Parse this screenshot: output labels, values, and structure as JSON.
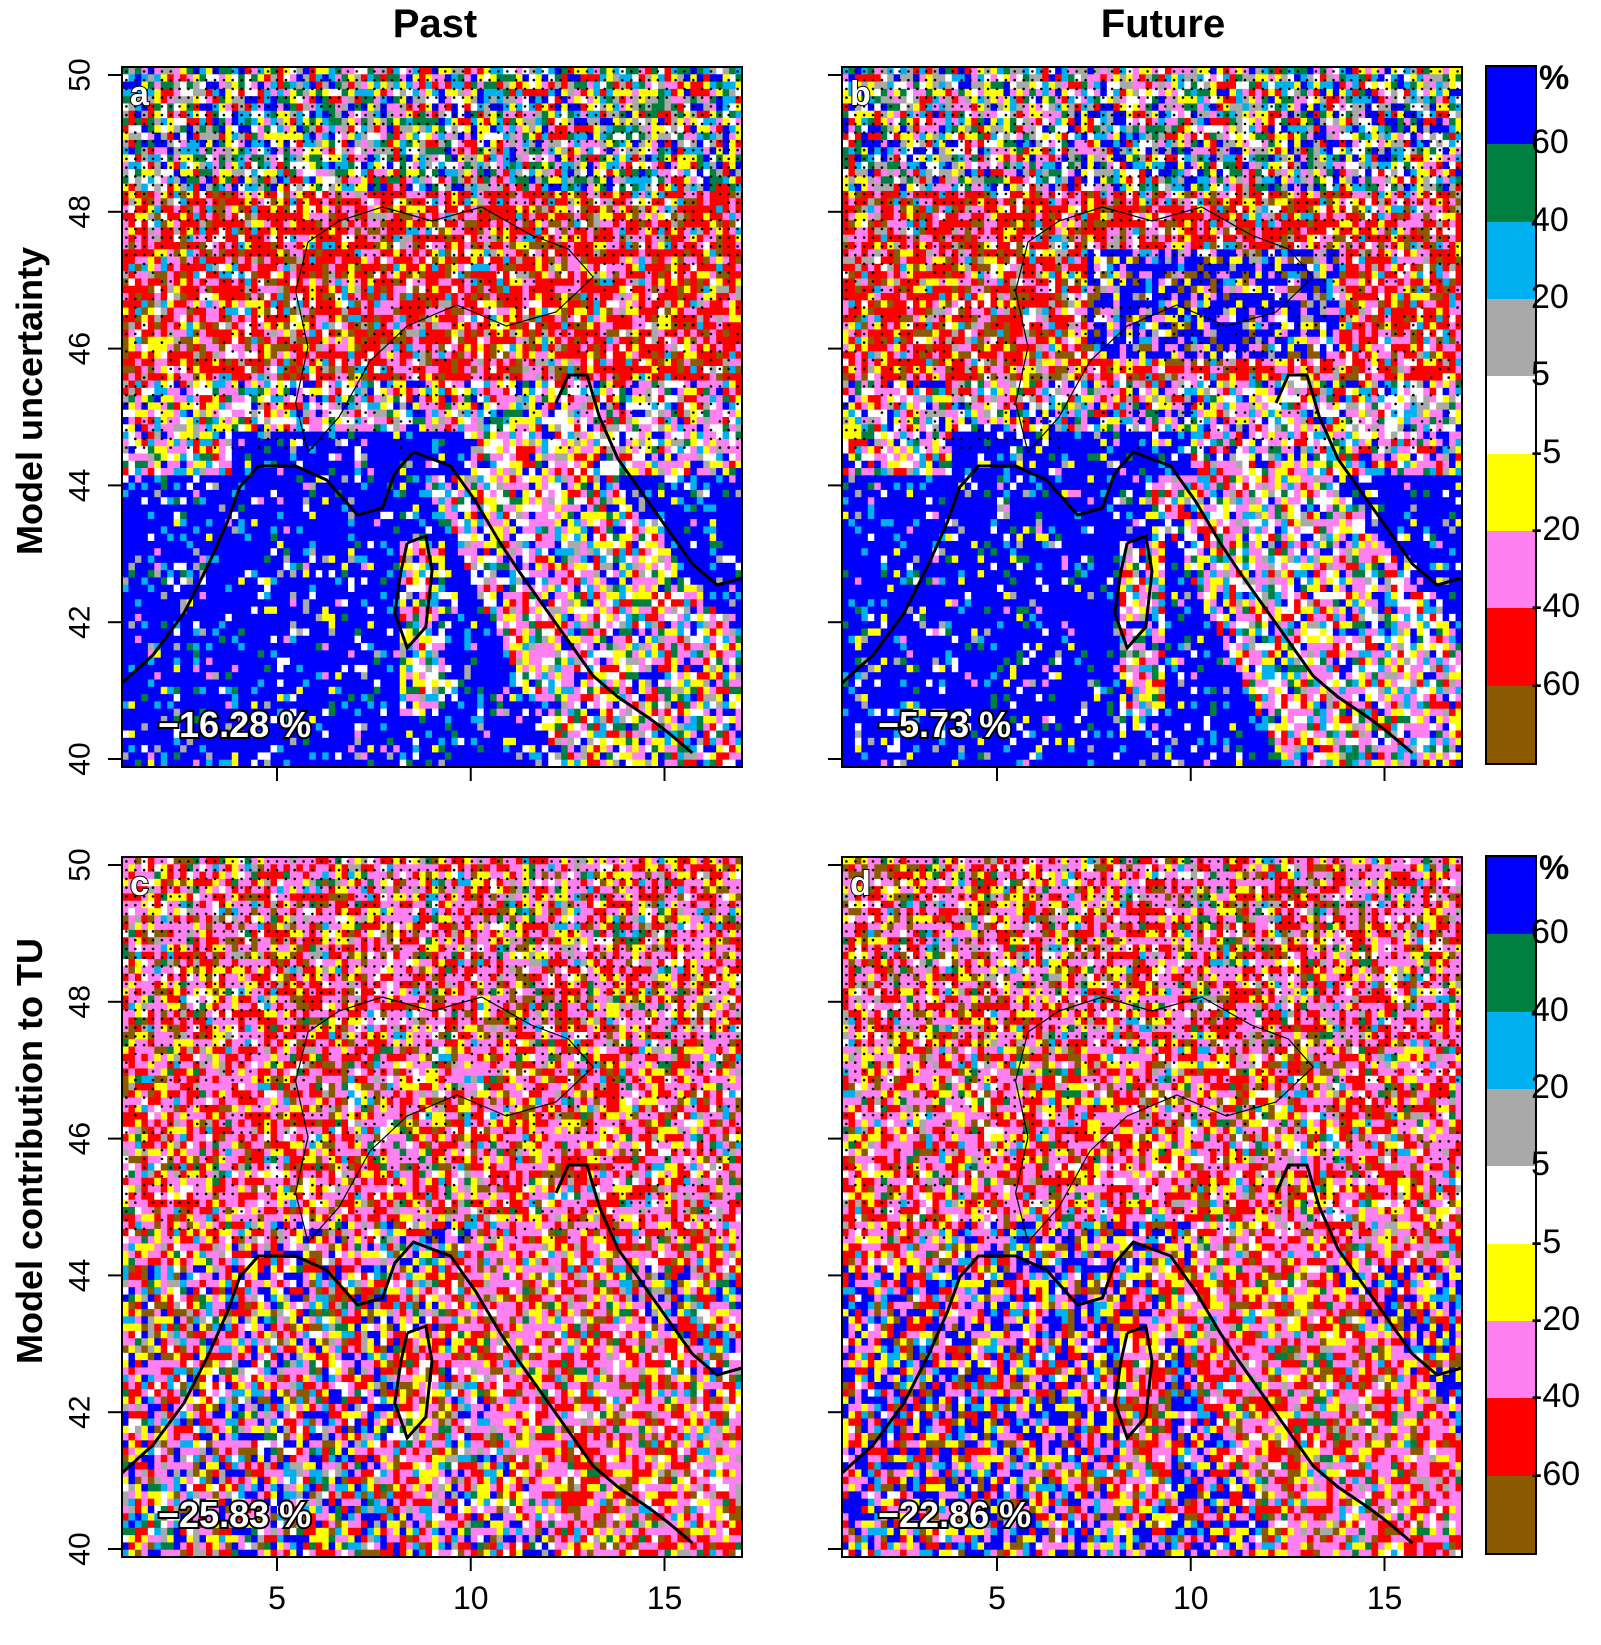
{
  "column_titles": [
    "Past",
    "Future"
  ],
  "row_labels": [
    "Model uncertainty",
    "Model contribution to TU"
  ],
  "colors": {
    "brown": "#8B5A00",
    "red": "#FF0000",
    "pink": "#FF80F0",
    "yellow": "#FFFF00",
    "white": "#FFFFFF",
    "gray": "#A9A9A9",
    "lightblue": "#00B0F0",
    "green": "#008040",
    "blue": "#0000FF"
  },
  "legend": {
    "unit": "%",
    "tick_labels": [
      "60",
      "40",
      "20",
      "5",
      "-5",
      "-20",
      "-40",
      "-60"
    ],
    "bins": [
      {
        "range": ">60",
        "color": "#0000FF"
      },
      {
        "range": "40 to 60",
        "color": "#008040"
      },
      {
        "range": "20 to 40",
        "color": "#00B0F0"
      },
      {
        "range": "5 to 20",
        "color": "#A9A9A9"
      },
      {
        "range": "-5 to 5",
        "color": "#FFFFFF"
      },
      {
        "range": "-20 to -5",
        "color": "#FFFF00"
      },
      {
        "range": "-40 to -20",
        "color": "#FF80F0"
      },
      {
        "range": "-60 to -40",
        "color": "#FF0000"
      },
      {
        "range": "<-60",
        "color": "#8B5A00"
      }
    ]
  },
  "chart_data": [
    {
      "type": "heatmap",
      "panel": "a",
      "column": "Past",
      "row": "Model uncertainty",
      "mean_label": "−16.28 %",
      "x_ticks": [
        "5",
        "10",
        "15"
      ],
      "y_ticks": [
        "40",
        "42",
        "44",
        "46",
        "48",
        "50"
      ],
      "xlim": [
        1,
        17
      ],
      "ylim": [
        40,
        50
      ]
    },
    {
      "type": "heatmap",
      "panel": "b",
      "column": "Future",
      "row": "Model uncertainty",
      "mean_label": "−5.73 %",
      "x_ticks": [
        "5",
        "10",
        "15"
      ],
      "y_ticks": [
        "40",
        "42",
        "44",
        "46",
        "48",
        "50"
      ],
      "xlim": [
        1,
        17
      ],
      "ylim": [
        40,
        50
      ]
    },
    {
      "type": "heatmap",
      "panel": "c",
      "column": "Past",
      "row": "Model contribution to TU",
      "mean_label": "−25.83 %",
      "x_ticks": [
        "5",
        "10",
        "15"
      ],
      "y_ticks": [
        "40",
        "42",
        "44",
        "46",
        "48",
        "50"
      ],
      "xlim": [
        1,
        17
      ],
      "ylim": [
        40,
        50
      ]
    },
    {
      "type": "heatmap",
      "panel": "d",
      "column": "Future",
      "row": "Model contribution to TU",
      "mean_label": "−22.86 %",
      "x_ticks": [
        "5",
        "10",
        "15"
      ],
      "y_ticks": [
        "40",
        "42",
        "44",
        "46",
        "48",
        "50"
      ],
      "xlim": [
        1,
        17
      ],
      "ylim": [
        40,
        50
      ]
    }
  ]
}
